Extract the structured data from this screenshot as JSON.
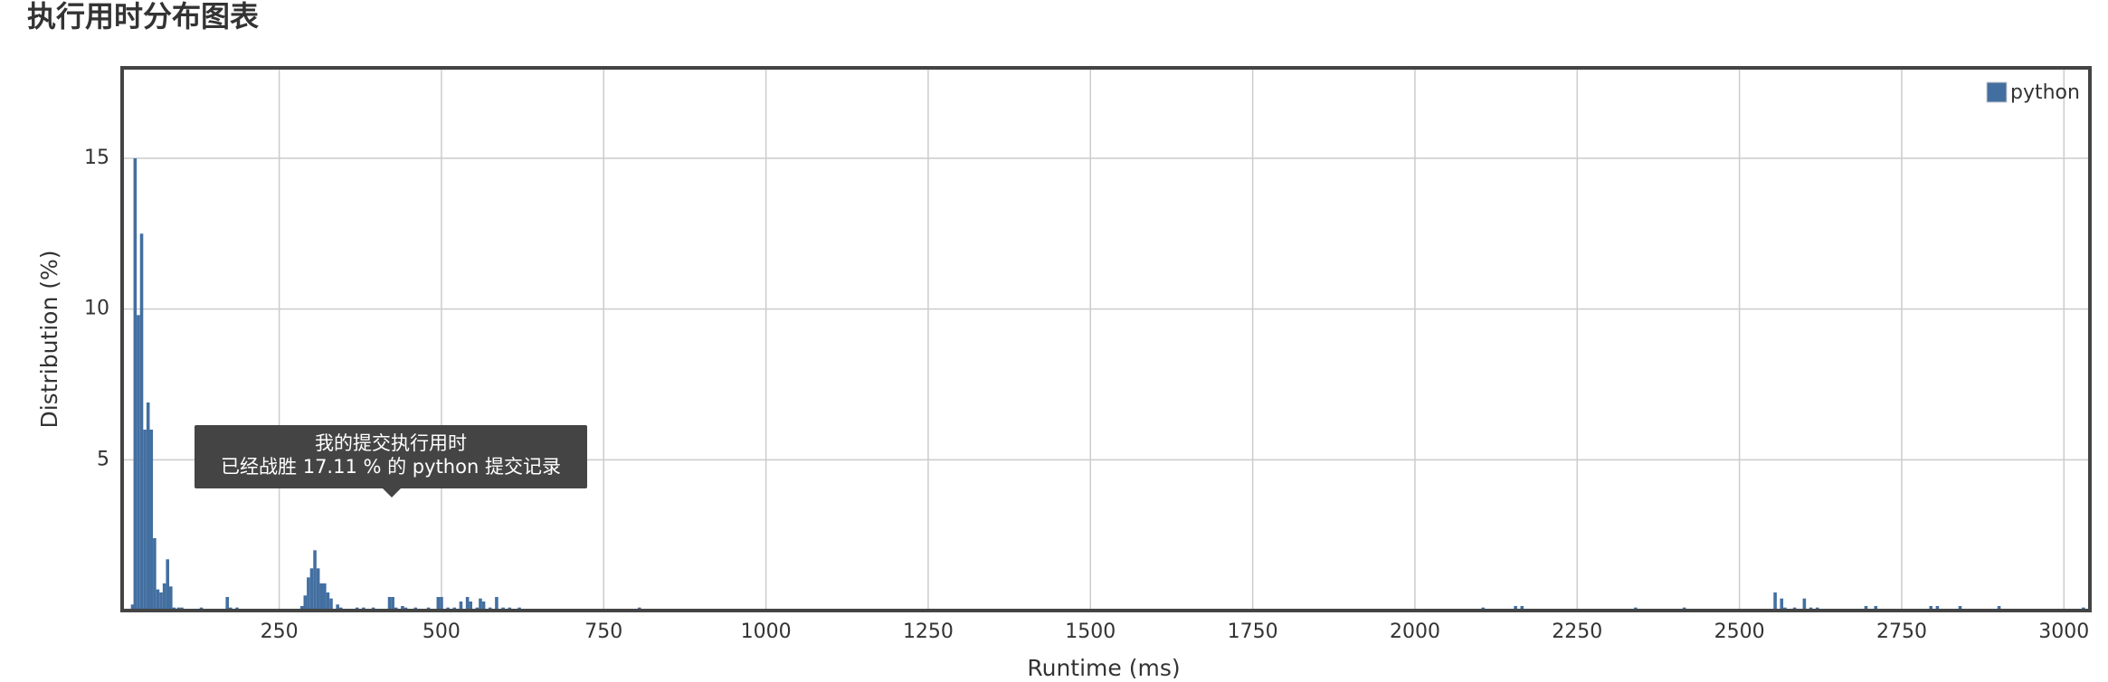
{
  "chart_data": {
    "type": "bar",
    "title": "执行用时分布图表",
    "x_label": "Runtime (ms)",
    "y_label": "Distribution (%)",
    "annotation": [
      "我的提交执行用时",
      "已经战胜 17.11 % 的 python 提交记录"
    ],
    "series": [
      {
        "name": "python",
        "color": "#436fa0",
        "x": [
          24,
          28,
          33,
          38,
          43,
          48,
          53,
          58,
          63,
          68,
          73,
          78,
          83,
          88,
          95,
          100,
          130,
          170,
          175,
          185,
          240,
          285,
          290,
          295,
          300,
          305,
          310,
          315,
          320,
          325,
          330,
          340,
          345,
          370,
          380,
          395,
          420,
          425,
          430,
          440,
          445,
          460,
          480,
          495,
          500,
          510,
          520,
          530,
          540,
          545,
          555,
          560,
          565,
          575,
          585,
          595,
          605,
          620,
          805,
          2105,
          2155,
          2165,
          2340,
          2415,
          2555,
          2565,
          2570,
          2585,
          2600,
          2610,
          2620,
          2695,
          2710,
          2795,
          2805,
          2840,
          2900,
          3030
        ],
        "values": [
          0.2,
          15,
          9.8,
          12.5,
          6,
          6.9,
          6,
          2.4,
          0.7,
          0.6,
          0.9,
          1.7,
          0.8,
          0.1,
          0.1,
          0.1,
          0.1,
          0.45,
          0.1,
          0.1,
          0.05,
          0.15,
          0.5,
          1.1,
          1.4,
          2.0,
          1.4,
          0.9,
          0.9,
          0.6,
          0.4,
          0.2,
          0.1,
          0.1,
          0.1,
          0.1,
          0.45,
          0.45,
          0.1,
          0.15,
          0.1,
          0.1,
          0.1,
          0.45,
          0.45,
          0.1,
          0.1,
          0.3,
          0.45,
          0.3,
          0.1,
          0.4,
          0.3,
          0.1,
          0.45,
          0.1,
          0.1,
          0.1,
          0.1,
          0.1,
          0.15,
          0.15,
          0.1,
          0.1,
          0.6,
          0.4,
          0.1,
          0.1,
          0.4,
          0.1,
          0.1,
          0.15,
          0.15,
          0.15,
          0.15,
          0.15,
          0.15,
          0.1
        ]
      }
    ],
    "xlim": [
      8,
      3040
    ],
    "ylim": [
      0,
      18
    ],
    "xticks": [
      250,
      500,
      750,
      1000,
      1250,
      1500,
      1750,
      2000,
      2250,
      2500,
      2750,
      3000
    ],
    "yticks": [
      5,
      10,
      15
    ],
    "grid": true,
    "legend": "top-right"
  }
}
